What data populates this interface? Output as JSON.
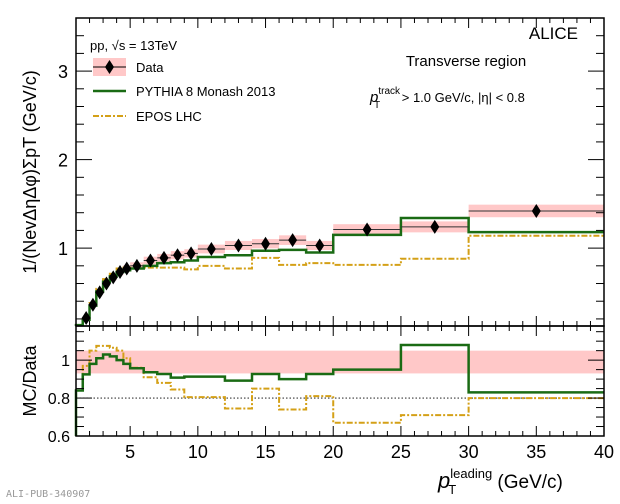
{
  "chart_data": [
    {
      "type": "line",
      "panel": "upper",
      "experiment_label": "ALICE",
      "collision_label": "pp, √s = 13TeV",
      "region_label": "Transverse region",
      "cut_label": {
        "p": "p",
        "sup": "track",
        "sub": "T",
        "rest": " > 1.0 GeV/c, |η| < 0.8"
      },
      "ylabel": "1/(NevΔηΔφ)ΣpT (GeV/c)",
      "ylim": [
        0.12,
        3.6
      ],
      "xlim": [
        1,
        40
      ],
      "yticks": [
        1,
        2,
        3
      ],
      "ytick_labels": [
        "1",
        "2",
        "3"
      ],
      "legend_position": "top-left",
      "legend": [
        "Data",
        "PYTHIA 8 Monash 2013",
        "EPOS LHC"
      ],
      "bin_edges": [
        1,
        1.5,
        2,
        2.5,
        3,
        3.5,
        4,
        4.5,
        5,
        6,
        7,
        8,
        9,
        10,
        12,
        14,
        16,
        18,
        20,
        25,
        30,
        40
      ],
      "series": [
        {
          "name": "Data",
          "style": "markers",
          "color": "#000000",
          "syst_color": "#ffc8c8",
          "rel_syst": 0.05,
          "values": [
            null,
            0.21,
            0.36,
            0.5,
            0.6,
            0.67,
            0.73,
            0.77,
            0.8,
            0.86,
            0.89,
            0.92,
            0.94,
            0.99,
            1.03,
            1.05,
            1.09,
            1.03,
            1.21,
            1.24,
            1.42
          ]
        },
        {
          "name": "PYTHIA 8 Monash 2013",
          "style": "solid",
          "color": "#1a6b14",
          "values": [
            0.13,
            0.19,
            0.35,
            0.51,
            0.62,
            0.68,
            0.73,
            0.75,
            0.77,
            0.8,
            0.83,
            0.84,
            0.86,
            0.9,
            0.92,
            0.97,
            0.98,
            0.95,
            1.15,
            1.34,
            1.18
          ]
        },
        {
          "name": "EPOS LHC",
          "style": "dashdot",
          "color": "#d4a017",
          "values": [
            0.13,
            0.2,
            0.38,
            0.54,
            0.65,
            0.71,
            0.77,
            0.78,
            0.77,
            0.78,
            0.78,
            0.78,
            0.76,
            0.8,
            0.77,
            0.89,
            0.81,
            0.83,
            0.81,
            0.88,
            1.14
          ]
        }
      ]
    },
    {
      "type": "line",
      "panel": "lower",
      "ylabel": "MC/Data",
      "xlabel": {
        "p": "p",
        "sup": "leading",
        "sub": "T",
        "rest": " (GeV/c)"
      },
      "ylim": [
        0.6,
        1.18
      ],
      "xlim": [
        1,
        40
      ],
      "yticks": [
        0.6,
        0.8,
        1
      ],
      "ytick_labels": [
        "0.6",
        "0.8",
        "1"
      ],
      "xticks": [
        5,
        10,
        15,
        20,
        25,
        30,
        35,
        40
      ],
      "xtick_labels": [
        "5",
        "10",
        "15",
        "20",
        "25",
        "30",
        "35",
        "40"
      ],
      "reference_line": 0.8,
      "syst_band": [
        0.93,
        1.05
      ],
      "bin_edges": [
        1,
        1.5,
        2,
        2.5,
        3,
        3.5,
        4,
        4.5,
        5,
        6,
        7,
        8,
        9,
        10,
        12,
        14,
        16,
        18,
        20,
        25,
        30,
        40
      ],
      "series": [
        {
          "name": "PYTHIA 8 Monash 2013",
          "style": "solid",
          "color": "#1a6b14",
          "values": [
            0.84,
            0.925,
            0.98,
            1.01,
            1.03,
            1.02,
            1.0,
            0.98,
            0.957,
            0.936,
            0.927,
            0.908,
            0.913,
            0.913,
            0.892,
            0.927,
            0.9,
            0.927,
            0.95,
            1.08,
            0.83
          ]
        },
        {
          "name": "EPOS LHC",
          "style": "dashdot",
          "color": "#d4a017",
          "values": [
            0.84,
            0.97,
            1.05,
            1.075,
            1.075,
            1.065,
            1.05,
            1.01,
            0.96,
            0.91,
            0.88,
            0.845,
            0.805,
            0.805,
            0.745,
            0.85,
            0.74,
            0.81,
            0.67,
            0.71,
            0.8
          ]
        }
      ]
    }
  ],
  "footer": "ALI-PUB-340907"
}
